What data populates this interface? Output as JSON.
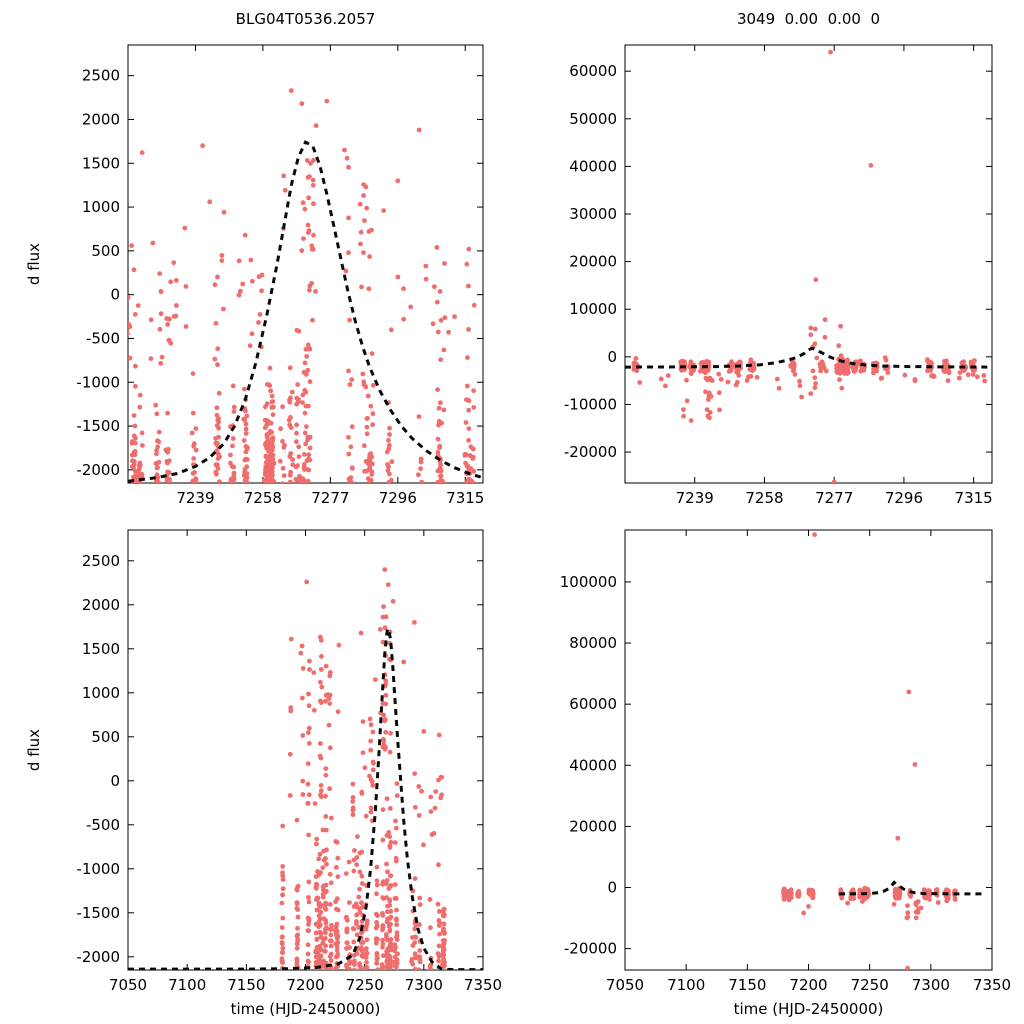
{
  "styles": {
    "point_color": "#ef6d6d",
    "curve_color": "#0a0a0a",
    "axis_color": "#000000",
    "background": "#ffffff"
  },
  "chart_data": {
    "type": "scatter",
    "description": "2x2 grid of microlensing difference-flux light curves with dashed model fit",
    "panels": [
      {
        "name": "top-left",
        "title": "BLG04T0536.2057",
        "ylabel": "d flux",
        "xlabel": "",
        "xlim": [
          7220,
          7320
        ],
        "ylim": [
          -2150,
          2850
        ],
        "xticks": [
          7239,
          7258,
          7277,
          7296,
          7315
        ],
        "yticks": [
          -2000,
          -1500,
          -1000,
          -500,
          0,
          500,
          1000,
          1500,
          2000,
          2500
        ],
        "seed": 1,
        "model_curve": [
          [
            7220,
            -2130
          ],
          [
            7228,
            -2090
          ],
          [
            7234,
            -2040
          ],
          [
            7239,
            -1960
          ],
          [
            7243,
            -1860
          ],
          [
            7247,
            -1700
          ],
          [
            7250,
            -1500
          ],
          [
            7253,
            -1200
          ],
          [
            7256,
            -780
          ],
          [
            7259,
            -250
          ],
          [
            7262,
            350
          ],
          [
            7264,
            800
          ],
          [
            7266,
            1250
          ],
          [
            7268,
            1570
          ],
          [
            7270,
            1740
          ],
          [
            7272,
            1700
          ],
          [
            7274,
            1480
          ],
          [
            7276,
            1150
          ],
          [
            7278,
            780
          ],
          [
            7280,
            400
          ],
          [
            7282,
            30
          ],
          [
            7284,
            -300
          ],
          [
            7286,
            -580
          ],
          [
            7288,
            -820
          ],
          [
            7291,
            -1100
          ],
          [
            7294,
            -1320
          ],
          [
            7297,
            -1500
          ],
          [
            7300,
            -1640
          ],
          [
            7304,
            -1780
          ],
          [
            7308,
            -1890
          ],
          [
            7312,
            -1975
          ],
          [
            7316,
            -2040
          ],
          [
            7320,
            -2090
          ]
        ],
        "clusters": [
          {
            "x": [
              7220,
              7261
            ],
            "y": [
              -2200,
              -750
            ],
            "n": 330,
            "dist": "bottom",
            "nights": 13
          },
          {
            "x": [
              7220,
              7261
            ],
            "y": [
              -850,
              450
            ],
            "n": 55,
            "dist": "uniform",
            "nights": 13
          },
          {
            "x": [
              7262,
              7291
            ],
            "y": [
              -2200,
              100
            ],
            "n": 150,
            "dist": "bottom",
            "nights": 10
          },
          {
            "x": [
              7263,
              7289
            ],
            "y": [
              0,
              1600
            ],
            "n": 45,
            "dist": "uniform",
            "nights": 10
          },
          {
            "x": [
              7291,
              7320
            ],
            "y": [
              -2200,
              -450
            ],
            "n": 100,
            "dist": "bottom",
            "nights": 10
          },
          {
            "x": [
              7293,
              7318
            ],
            "y": [
              -450,
              450
            ],
            "n": 20,
            "dist": "uniform"
          }
        ],
        "outliers": [
          [
            7224,
            1620
          ],
          [
            7241,
            1700
          ],
          [
            7243,
            1060
          ],
          [
            7227,
            590
          ],
          [
            7247,
            940
          ],
          [
            7266,
            2330
          ],
          [
            7269,
            2180
          ],
          [
            7273,
            1930
          ],
          [
            7276,
            2210
          ],
          [
            7281,
            1650
          ],
          [
            7287,
            1230
          ],
          [
            7292,
            960
          ],
          [
            7302,
            1880
          ],
          [
            7296,
            1300
          ],
          [
            7307,
            540
          ],
          [
            7312,
            -250
          ],
          [
            7316,
            520
          ],
          [
            7221,
            560
          ],
          [
            7236,
            760
          ],
          [
            7253,
            680
          ]
        ]
      },
      {
        "name": "top-right",
        "title": "3049  0.00  0.00  0",
        "ylabel": "",
        "xlabel": "",
        "xlim": [
          7220,
          7320
        ],
        "ylim": [
          -26500,
          65500
        ],
        "xticks": [
          7239,
          7258,
          7277,
          7296,
          7315
        ],
        "yticks": [
          -20000,
          -10000,
          0,
          10000,
          20000,
          30000,
          40000,
          50000,
          60000
        ],
        "seed": 2,
        "model_curve": [
          [
            7220,
            -2150
          ],
          [
            7235,
            -2120
          ],
          [
            7245,
            -2050
          ],
          [
            7252,
            -1900
          ],
          [
            7257,
            -1650
          ],
          [
            7261,
            -1250
          ],
          [
            7264,
            -750
          ],
          [
            7267,
            -100
          ],
          [
            7269,
            800
          ],
          [
            7270,
            1500
          ],
          [
            7271,
            1800
          ],
          [
            7272,
            1500
          ],
          [
            7274,
            700
          ],
          [
            7276,
            -100
          ],
          [
            7279,
            -900
          ],
          [
            7282,
            -1400
          ],
          [
            7286,
            -1750
          ],
          [
            7291,
            -1950
          ],
          [
            7298,
            -2060
          ],
          [
            7308,
            -2110
          ],
          [
            7320,
            -2150
          ]
        ],
        "clusters": [
          {
            "x": [
              7220,
              7320
            ],
            "n": 400,
            "dist": "gauss",
            "mean": -2000,
            "sd": 700,
            "nights": 24
          },
          {
            "x": [
              7233,
              7247
            ],
            "y": [
              -13500,
              -3500
            ],
            "n": 18,
            "dist": "uniform",
            "nights": 4
          },
          {
            "x": [
              7268,
              7285
            ],
            "y": [
              -8500,
              9000
            ],
            "n": 22,
            "dist": "uniform",
            "nights": 5
          },
          {
            "x": [
              7288,
              7320
            ],
            "y": [
              -5200,
              -3200
            ],
            "n": 14,
            "dist": "uniform",
            "nights": 8
          },
          {
            "x": [
              7222,
              7262
            ],
            "y": [
              -6500,
              -3400
            ],
            "n": 12,
            "dist": "uniform"
          }
        ],
        "outliers": [
          [
            7276,
            64000
          ],
          [
            7287,
            40200
          ],
          [
            7272,
            16200
          ],
          [
            7277,
            -26300
          ],
          [
            7262,
            -6600
          ],
          [
            7224,
            -5400
          ],
          [
            7231,
            -6100
          ],
          [
            7243,
            -12800
          ],
          [
            7238,
            -13400
          ],
          [
            7299,
            -4900
          ],
          [
            7308,
            -5000
          ],
          [
            7316,
            -4200
          ],
          [
            7256,
            -4300
          ],
          [
            7251,
            -3900
          ]
        ]
      },
      {
        "name": "bottom-left",
        "title": "",
        "ylabel": "d flux",
        "xlabel": "time (HJD-2450000)",
        "xlim": [
          7050,
          7350
        ],
        "ylim": [
          -2150,
          2850
        ],
        "xticks": [
          7050,
          7100,
          7150,
          7200,
          7250,
          7300,
          7350
        ],
        "yticks": [
          -2000,
          -1500,
          -1000,
          -500,
          0,
          500,
          1000,
          1500,
          2000,
          2500
        ],
        "seed": 3,
        "model_curve": [
          [
            7050,
            -2140
          ],
          [
            7100,
            -2140
          ],
          [
            7150,
            -2140
          ],
          [
            7185,
            -2135
          ],
          [
            7210,
            -2120
          ],
          [
            7228,
            -2080
          ],
          [
            7240,
            -1980
          ],
          [
            7246,
            -1780
          ],
          [
            7251,
            -1450
          ],
          [
            7255,
            -1000
          ],
          [
            7259,
            -350
          ],
          [
            7262,
            300
          ],
          [
            7265,
            1000
          ],
          [
            7267,
            1450
          ],
          [
            7269,
            1700
          ],
          [
            7270,
            1730
          ],
          [
            7272,
            1600
          ],
          [
            7274,
            1250
          ],
          [
            7276,
            850
          ],
          [
            7278,
            450
          ],
          [
            7280,
            80
          ],
          [
            7283,
            -450
          ],
          [
            7286,
            -880
          ],
          [
            7290,
            -1300
          ],
          [
            7295,
            -1680
          ],
          [
            7300,
            -1900
          ],
          [
            7307,
            -2060
          ],
          [
            7315,
            -2140
          ],
          [
            7325,
            -2145
          ],
          [
            7350,
            -2145
          ]
        ],
        "clusters": [
          {
            "x": [
              7180,
              7230
            ],
            "y": [
              -2250,
              -300
            ],
            "n": 300,
            "dist": "bottom",
            "nights": 12
          },
          {
            "x": [
              7182,
              7228
            ],
            "y": [
              -300,
              1750
            ],
            "n": 55,
            "dist": "uniform",
            "nights": 10
          },
          {
            "x": [
              7231,
              7261
            ],
            "y": [
              -2250,
              -500
            ],
            "n": 150,
            "dist": "bottom",
            "nights": 9
          },
          {
            "x": [
              7234,
              7260
            ],
            "y": [
              -500,
              800
            ],
            "n": 28,
            "dist": "uniform",
            "nights": 8
          },
          {
            "x": [
              7261,
              7284
            ],
            "y": [
              -2250,
              300
            ],
            "n": 130,
            "dist": "bottom",
            "nights": 8
          },
          {
            "x": [
              7262,
              7281
            ],
            "y": [
              300,
              1900
            ],
            "n": 30,
            "dist": "uniform",
            "nights": 7
          },
          {
            "x": [
              7284,
              7318
            ],
            "y": [
              -2250,
              -800
            ],
            "n": 110,
            "dist": "bottom",
            "nights": 10
          },
          {
            "x": [
              7287,
              7316
            ],
            "y": [
              -800,
              100
            ],
            "n": 16,
            "dist": "uniform"
          }
        ],
        "outliers": [
          [
            7201,
            2260
          ],
          [
            7188,
            1610
          ],
          [
            7196,
            1450
          ],
          [
            7207,
            1230
          ],
          [
            7247,
            1680
          ],
          [
            7259,
            1150
          ],
          [
            7267,
            2400
          ],
          [
            7270,
            2230
          ],
          [
            7266,
            1980
          ],
          [
            7274,
            2040
          ],
          [
            7292,
            1800
          ],
          [
            7300,
            560
          ],
          [
            7313,
            520
          ],
          [
            7306,
            -350
          ],
          [
            7283,
            1350
          ],
          [
            7219,
            980
          ]
        ]
      },
      {
        "name": "bottom-right",
        "title": "",
        "ylabel": "",
        "xlabel": "time (HJD-2450000)",
        "xlim": [
          7050,
          7350
        ],
        "ylim": [
          -27000,
          117000
        ],
        "xticks": [
          7050,
          7100,
          7150,
          7200,
          7250,
          7300,
          7350
        ],
        "yticks": [
          -20000,
          0,
          20000,
          40000,
          60000,
          80000,
          100000
        ],
        "seed": 4,
        "model_curve": [
          [
            7225,
            -2090
          ],
          [
            7240,
            -2060
          ],
          [
            7250,
            -1950
          ],
          [
            7257,
            -1700
          ],
          [
            7262,
            -1150
          ],
          [
            7266,
            -250
          ],
          [
            7268,
            550
          ],
          [
            7270,
            1700
          ],
          [
            7272,
            1150
          ],
          [
            7275,
            250
          ],
          [
            7278,
            -550
          ],
          [
            7282,
            -1250
          ],
          [
            7287,
            -1750
          ],
          [
            7295,
            -1980
          ],
          [
            7310,
            -2060
          ],
          [
            7330,
            -2090
          ],
          [
            7345,
            -2100
          ]
        ],
        "clusters": [
          {
            "x": [
              7180,
              7207
            ],
            "n": 85,
            "dist": "gauss",
            "mean": -2100,
            "sd": 800,
            "nights": 7
          },
          {
            "x": [
              7225,
              7320
            ],
            "n": 240,
            "dist": "gauss",
            "mean": -2000,
            "sd": 750,
            "nights": 17
          },
          {
            "x": [
              7276,
              7290
            ],
            "y": [
              -10000,
              -3500
            ],
            "n": 10,
            "dist": "uniform",
            "nights": 4
          }
        ],
        "outliers": [
          [
            7205,
            115500
          ],
          [
            7282,
            64000
          ],
          [
            7287,
            40300
          ],
          [
            7273,
            16100
          ],
          [
            7281,
            -26400
          ],
          [
            7196,
            -8300
          ],
          [
            7200,
            -6200
          ],
          [
            7288,
            -9900
          ],
          [
            7292,
            -6700
          ],
          [
            7270,
            -5500
          ],
          [
            7306,
            -4900
          ],
          [
            7313,
            -4400
          ],
          [
            7232,
            -5100
          ],
          [
            7244,
            -4600
          ]
        ]
      }
    ]
  }
}
